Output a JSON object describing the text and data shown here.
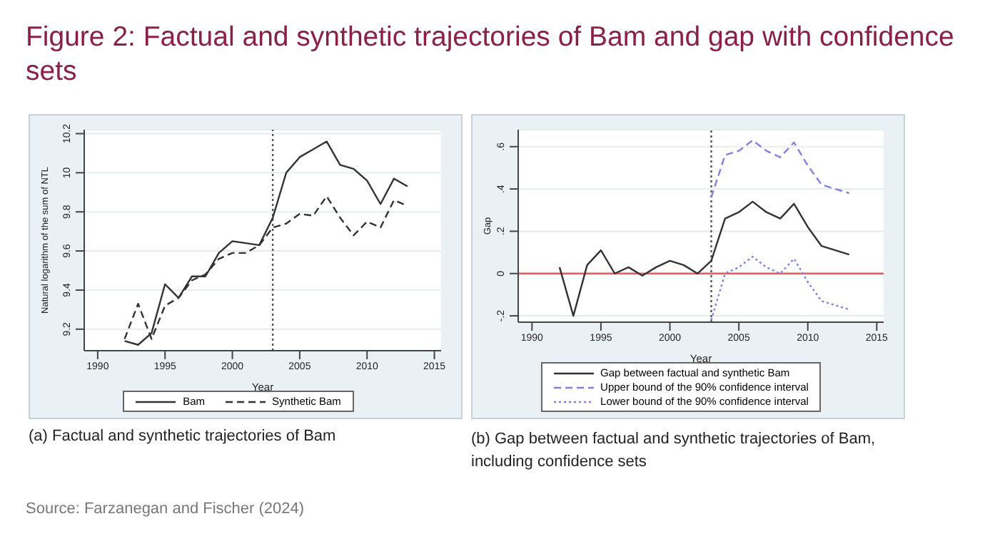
{
  "chart_data": [
    {
      "type": "line",
      "title": "Figure 2: Factual and synthetic trajectories of Bam and gap with confidence sets",
      "xlabel": "Year",
      "ylabel": "Natural logarithm of the sum of NTL",
      "x": [
        1992,
        1993,
        1994,
        1995,
        1996,
        1997,
        1998,
        1999,
        2000,
        2001,
        2002,
        2003,
        2004,
        2005,
        2006,
        2007,
        2008,
        2009,
        2010,
        2011,
        2012,
        2013
      ],
      "series": [
        {
          "name": "Bam",
          "color": "#333333",
          "line_style": "solid",
          "values": [
            9.14,
            9.12,
            9.18,
            9.43,
            9.36,
            9.47,
            9.47,
            9.59,
            9.65,
            9.64,
            9.63,
            9.77,
            10.0,
            10.08,
            10.12,
            10.16,
            10.04,
            10.02,
            9.96,
            9.84,
            9.97,
            9.93
          ]
        },
        {
          "name": "Synthetic Bam",
          "color": "#333333",
          "line_style": "dashed",
          "values": [
            9.15,
            9.33,
            9.15,
            9.32,
            9.36,
            9.45,
            9.48,
            9.56,
            9.59,
            9.59,
            9.63,
            9.72,
            9.74,
            9.79,
            9.78,
            9.88,
            9.77,
            9.68,
            9.75,
            9.72,
            9.86,
            9.83
          ]
        }
      ],
      "xlim": [
        1989,
        2015.5
      ],
      "xticks": [
        1990,
        1995,
        2000,
        2005,
        2010,
        2015
      ],
      "ylim": [
        9.09,
        10.22
      ],
      "yticks": [
        9.2,
        9.4,
        9.6,
        9.8,
        10,
        10.2
      ],
      "ref_lines": [
        {
          "axis": "x",
          "value": 2003,
          "color": "#555555",
          "line_style": "dotted"
        }
      ],
      "grid": "y",
      "legend": "bottom",
      "marker": "none",
      "annotations": [
        "(a) Factual and synthetic trajectories of Bam"
      ]
    },
    {
      "type": "line",
      "xlabel": "Year",
      "ylabel": "Gap",
      "x": [
        1992,
        1993,
        1994,
        1995,
        1996,
        1997,
        1998,
        1999,
        2000,
        2001,
        2002,
        2003,
        2004,
        2005,
        2006,
        2007,
        2008,
        2009,
        2010,
        2011,
        2012,
        2013
      ],
      "series": [
        {
          "name": "Gap between factual and synthetic Bam",
          "color": "#333333",
          "line_style": "solid",
          "values": [
            0.03,
            -0.2,
            0.04,
            0.11,
            0,
            0.03,
            -0.01,
            0.03,
            0.06,
            0.04,
            0,
            0.06,
            0.26,
            0.29,
            0.34,
            0.29,
            0.26,
            0.33,
            0.22,
            0.13,
            0.11,
            0.09
          ]
        },
        {
          "name": "Upper bound of the 90% confidence interval",
          "color": "#8080e0",
          "line_style": "dashed",
          "x": [
            2003,
            2004,
            2005,
            2006,
            2007,
            2008,
            2009,
            2010,
            2011,
            2012,
            2013
          ],
          "values": [
            0.36,
            0.56,
            0.58,
            0.63,
            0.58,
            0.55,
            0.62,
            0.51,
            0.42,
            0.4,
            0.38
          ]
        },
        {
          "name": "Lower bound of the 90% confidence interval",
          "color": "#8080e0",
          "line_style": "dotted",
          "x": [
            2003,
            2004,
            2005,
            2006,
            2007,
            2008,
            2009,
            2010,
            2011,
            2012,
            2013
          ],
          "values": [
            -0.22,
            0,
            0.03,
            0.08,
            0.03,
            0,
            0.07,
            -0.04,
            -0.13,
            -0.15,
            -0.17
          ]
        }
      ],
      "xlim": [
        1989,
        2015.5
      ],
      "xticks": [
        1990,
        1995,
        2000,
        2005,
        2010,
        2015
      ],
      "ylim": [
        -0.23,
        0.68
      ],
      "yticks": [
        {
          "value": -0.2,
          "label": "-.2"
        },
        0,
        {
          "value": 0.2,
          "label": ".2"
        },
        {
          "value": 0.4,
          "label": ".4"
        },
        {
          "value": 0.6,
          "label": ".6"
        }
      ],
      "ref_lines": [
        {
          "axis": "x",
          "value": 2003,
          "color": "#555555",
          "line_style": "dotted"
        },
        {
          "axis": "y",
          "value": 0,
          "color": "#e06060",
          "line_style": "solid"
        }
      ],
      "grid": "y",
      "legend": "bottom",
      "marker": "none",
      "annotations": [
        "(b) Gap between factual and synthetic trajectories of Bam, including confidence sets",
        "Source: Farzanegan and Fischer (2024)"
      ]
    }
  ]
}
